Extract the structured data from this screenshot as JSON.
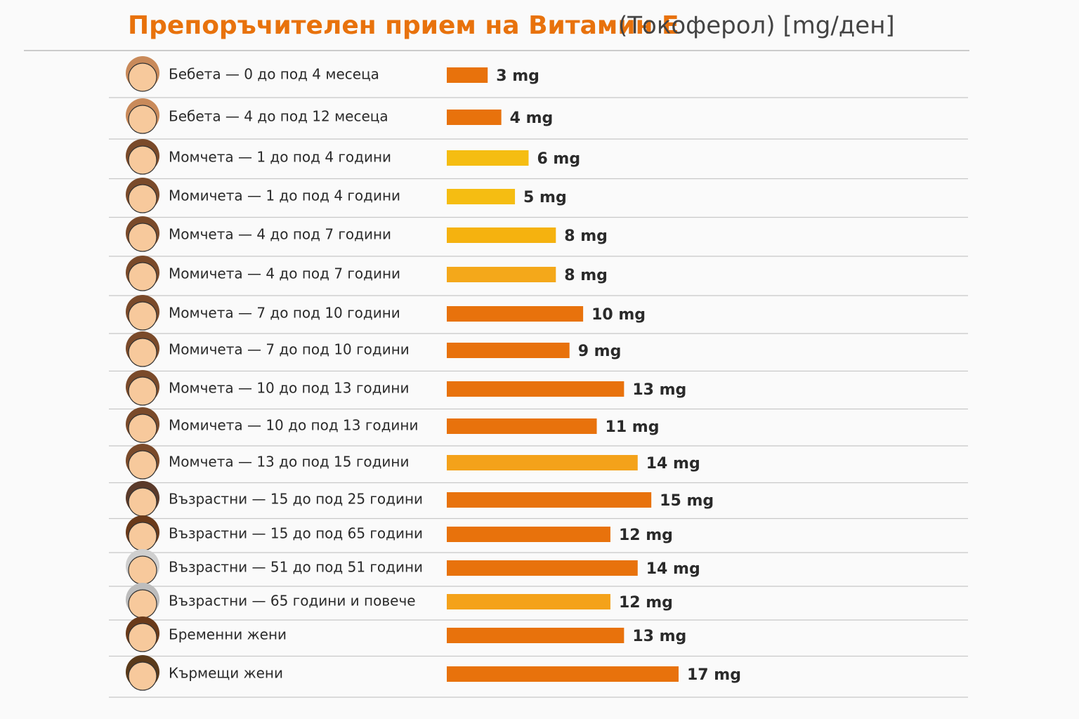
{
  "chart_data": {
    "type": "bar",
    "orientation": "horizontal",
    "title": "Препоръчителен прием на Витамин Е",
    "subtitle": "(Токоферол) [mg/ден]",
    "categories": [
      "Бебета — 0 до под 4 месеца",
      "Бебета — 4 до под 12 месеца",
      "Момчета — 1 до под 4 години",
      "Момичета — 1 до под 4 години",
      "Момчета — 4 до под 7 години",
      "Момичета — 4 до под 7 години",
      "Момчета — 7 до под 10 години",
      "Момичета — 7 до под 10 години",
      "Момчета — 10 до под 13 години",
      "Момичета — 10 до под 13 години",
      "Момчета — 13 до под 15 години",
      "Възрастни — 15 до под 25 години",
      "Възрастни — 15 до под 65 години",
      "Възрастни — 51 до под 51 години",
      "Възрастни — 65 години и повече",
      "Бременни жени",
      "Кърмещи жени"
    ],
    "values": [
      3,
      4,
      6,
      5,
      8,
      8,
      10,
      9,
      13,
      11,
      14,
      15,
      12,
      14,
      12,
      13,
      17
    ],
    "value_labels": [
      "3 mg",
      "4 mg",
      "6 mg",
      "5 mg",
      "8 mg",
      "8 mg",
      "10 mg",
      "9 mg",
      "13 mg",
      "11 mg",
      "14 mg",
      "15 mg",
      "12 mg",
      "14 mg",
      "12 mg",
      "13 mg",
      "17 mg"
    ],
    "colors": [
      "#e8720c",
      "#e8720c",
      "#f5bd12",
      "#f5bd12",
      "#f5b20f",
      "#f4a81a",
      "#e8720c",
      "#e8720c",
      "#e8720c",
      "#e8720c",
      "#f4a21a",
      "#e8720c",
      "#e8720c",
      "#e8720c",
      "#f4a21a",
      "#e8720c",
      "#e8720c"
    ]
  }
}
